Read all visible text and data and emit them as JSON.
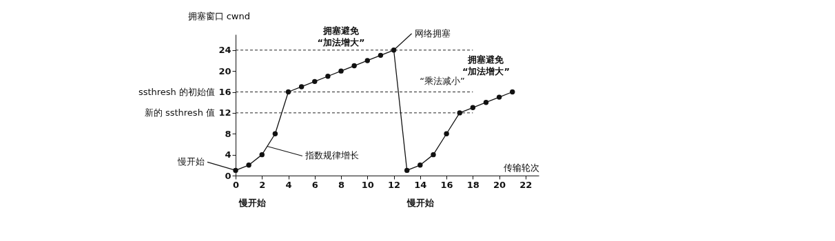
{
  "chart_data": {
    "type": "line",
    "xlabel": "传输轮次",
    "ylabel": "拥塞窗口 cwnd",
    "x": [
      0,
      1,
      2,
      3,
      4,
      5,
      6,
      7,
      8,
      9,
      10,
      11,
      12,
      13,
      14,
      15,
      16,
      17,
      18,
      19,
      20,
      21
    ],
    "series": [
      {
        "color": "#111111",
        "values": [
          1,
          2,
          4,
          8,
          16,
          17,
          18,
          19,
          20,
          21,
          22,
          23,
          24,
          1,
          2,
          4,
          8,
          12,
          13,
          14,
          15,
          16
        ]
      }
    ],
    "xlim": [
      0,
      23
    ],
    "ylim": [
      0,
      27
    ],
    "xticks": [
      0,
      2,
      4,
      6,
      8,
      10,
      12,
      14,
      16,
      18,
      20,
      22
    ],
    "yticks": [
      0,
      4,
      8,
      12,
      16,
      20,
      24
    ],
    "grid": false,
    "marker": "circle",
    "line_style": "solid",
    "ref_lines": [
      {
        "axis": "y",
        "value": 24,
        "label": null,
        "line_style": "dashed"
      },
      {
        "axis": "y",
        "value": 16,
        "label": "ssthresh 的初始值",
        "line_style": "dashed"
      },
      {
        "axis": "y",
        "value": 12,
        "label": "新的 ssthresh 值",
        "line_style": "dashed"
      }
    ],
    "annotations": [
      {
        "text": "拥塞避免 “加法增大”",
        "x": 8,
        "y": 20
      },
      {
        "text": "网络拥塞",
        "x": 12,
        "y": 24
      },
      "“乘法减小”",
      {
        "text": "拥塞避免 “加法增大”",
        "x": 19,
        "y": 14
      },
      {
        "text": "指数规律增长",
        "x": 2.4,
        "y": 5.6
      },
      {
        "text": "慢开始",
        "x": 0,
        "y": 1
      },
      "慢开始",
      "慢开始"
    ]
  }
}
